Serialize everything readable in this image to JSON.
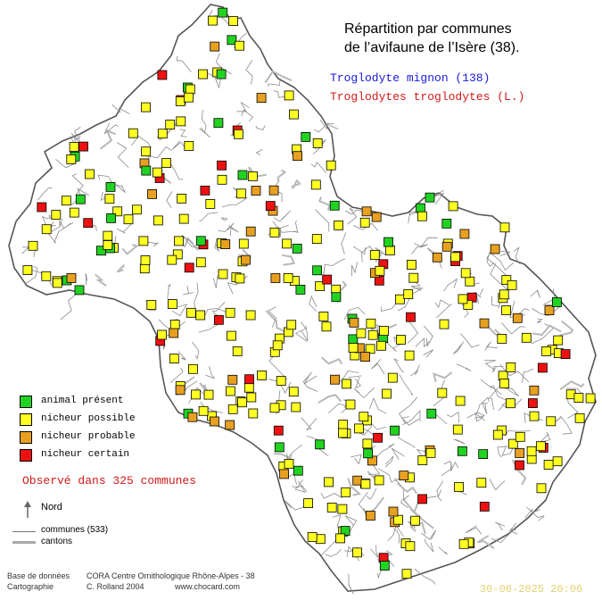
{
  "title_line1": "Répartition par communes",
  "title_line2": "de l’avifaune de l’Isère (38).",
  "species_name": "Troglodyte mignon  (138)",
  "scientific_name": "Troglodytes troglodytes (L.)",
  "legend": {
    "present": {
      "label": "animal présent",
      "color": "#21d321"
    },
    "possible": {
      "label": "nicheur possible",
      "color": "#ffff21"
    },
    "probable": {
      "label": "nicheur probable",
      "color": "#e8a020"
    },
    "certain": {
      "label": "nicheur certain",
      "color": "#ee1111"
    }
  },
  "observed_text": "Observé dans 325 communes",
  "north_label": "Nord",
  "communes_label": "communes (533)",
  "cantons_label": "cantons",
  "credit_db_label": "Base de données",
  "credit_db_value": "CORA Centre Ornithologique Rhône-Alpes - 38",
  "credit_carto_label": "Cartographie",
  "credit_carto_value": "C. Rolland 2004",
  "credit_url": "www.chocard.com",
  "date": "30-06-2025 20:06"
}
